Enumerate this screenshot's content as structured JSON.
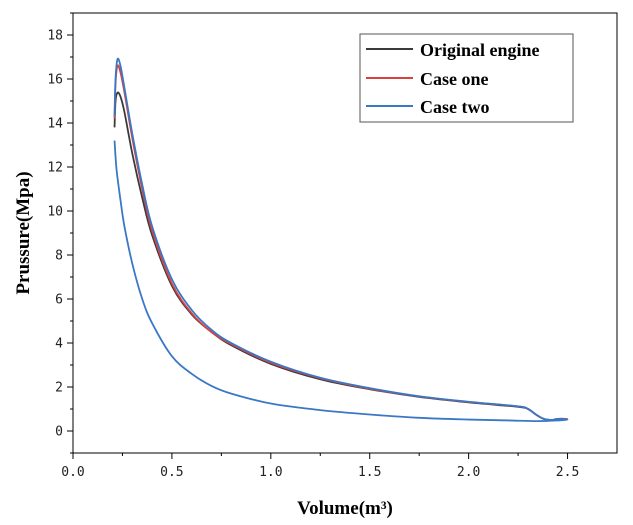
{
  "chart_data": {
    "type": "line",
    "xlabel": "Volume(m³)",
    "ylabel": "Prussure(Mpa)",
    "xlim": [
      0.0,
      2.75
    ],
    "ylim": [
      -1,
      19
    ],
    "xticks": [
      {
        "value": 0.0,
        "label": "0.0"
      },
      {
        "value": 0.5,
        "label": "0.5"
      },
      {
        "value": 1.0,
        "label": "1.0"
      },
      {
        "value": 1.5,
        "label": "1.5"
      },
      {
        "value": 2.0,
        "label": "2.0"
      },
      {
        "value": 2.5,
        "label": "2.5"
      }
    ],
    "yticks": [
      {
        "value": 0,
        "label": "0"
      },
      {
        "value": 2,
        "label": "2"
      },
      {
        "value": 4,
        "label": "4"
      },
      {
        "value": 6,
        "label": "6"
      },
      {
        "value": 8,
        "label": "8"
      },
      {
        "value": 10,
        "label": "10"
      },
      {
        "value": 12,
        "label": "12"
      },
      {
        "value": 14,
        "label": "14"
      },
      {
        "value": 16,
        "label": "16"
      },
      {
        "value": 18,
        "label": "18"
      }
    ],
    "legend_position": "top-right",
    "grid": false,
    "series": [
      {
        "name": "Original engine",
        "color": "#3a3a3a",
        "x": [
          0.21,
          0.215,
          0.225,
          0.24,
          0.26,
          0.3,
          0.35,
          0.4,
          0.5,
          0.6,
          0.7,
          0.8,
          1.0,
          1.25,
          1.5,
          1.75,
          2.0,
          2.25,
          2.3,
          2.34,
          2.38,
          2.42,
          2.45,
          2.5
        ],
        "y": [
          13.8,
          15.0,
          15.38,
          15.2,
          14.5,
          12.6,
          10.6,
          8.9,
          6.6,
          5.3,
          4.5,
          3.9,
          3.05,
          2.35,
          1.9,
          1.55,
          1.3,
          1.1,
          1.0,
          0.75,
          0.55,
          0.5,
          0.55,
          0.55
        ]
      },
      {
        "name": "Case one",
        "color": "#d94040",
        "x": [
          0.21,
          0.215,
          0.225,
          0.24,
          0.26,
          0.3,
          0.35,
          0.4,
          0.5,
          0.6,
          0.7,
          0.8,
          1.0,
          1.25,
          1.5,
          1.75,
          2.0,
          2.25,
          2.3,
          2.34,
          2.38,
          2.42,
          2.45,
          2.5
        ],
        "y": [
          14.2,
          15.8,
          16.6,
          16.3,
          15.4,
          13.3,
          11.0,
          9.1,
          6.7,
          5.35,
          4.5,
          3.95,
          3.1,
          2.4,
          1.92,
          1.57,
          1.32,
          1.12,
          1.0,
          0.75,
          0.55,
          0.5,
          0.55,
          0.55
        ]
      },
      {
        "name": "Case two",
        "color": "#3a78c6",
        "x": [
          0.21,
          0.215,
          0.225,
          0.24,
          0.26,
          0.3,
          0.35,
          0.4,
          0.5,
          0.6,
          0.7,
          0.8,
          1.0,
          1.25,
          1.5,
          1.75,
          2.0,
          2.25,
          2.3,
          2.34,
          2.38,
          2.42,
          2.45,
          2.5,
          2.45,
          2.35,
          2.2,
          2.0,
          1.75,
          1.5,
          1.25,
          1.0,
          0.8,
          0.7,
          0.6,
          0.5,
          0.4,
          0.35,
          0.3,
          0.26,
          0.24,
          0.22,
          0.21
        ],
        "y": [
          14.3,
          16.0,
          16.9,
          16.6,
          15.6,
          13.5,
          11.2,
          9.3,
          6.9,
          5.5,
          4.6,
          4.0,
          3.15,
          2.42,
          1.95,
          1.58,
          1.33,
          1.12,
          1.0,
          0.75,
          0.55,
          0.5,
          0.55,
          0.52,
          0.48,
          0.45,
          0.48,
          0.52,
          0.6,
          0.75,
          0.95,
          1.25,
          1.7,
          2.05,
          2.6,
          3.4,
          4.9,
          6.0,
          7.6,
          9.3,
          10.5,
          11.9,
          13.2
        ]
      }
    ]
  }
}
